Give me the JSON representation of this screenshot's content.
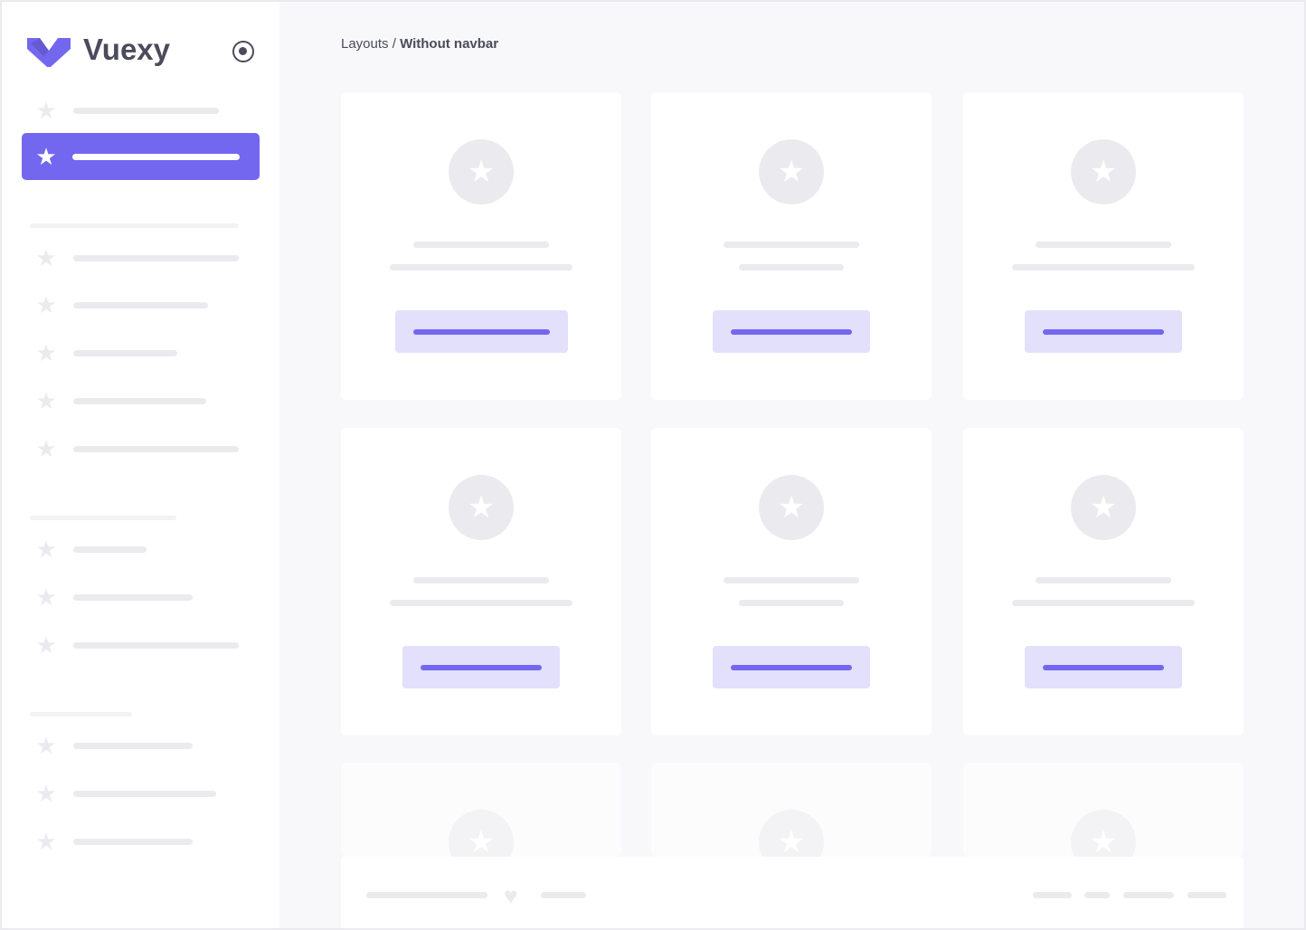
{
  "brand": {
    "name": "Vuexy",
    "accent": "#7367f0",
    "logo_icon": "vuexy-v-logo"
  },
  "sidebar": {
    "toggle_icon": "radio-circle-icon",
    "item_icon": "star-icon",
    "active_index": 1
  },
  "breadcrumb": {
    "parent": "Layouts",
    "separator": " / ",
    "current": "Without navbar"
  },
  "card_icon": "star-icon",
  "footer": {
    "icon": "heart-icon"
  }
}
